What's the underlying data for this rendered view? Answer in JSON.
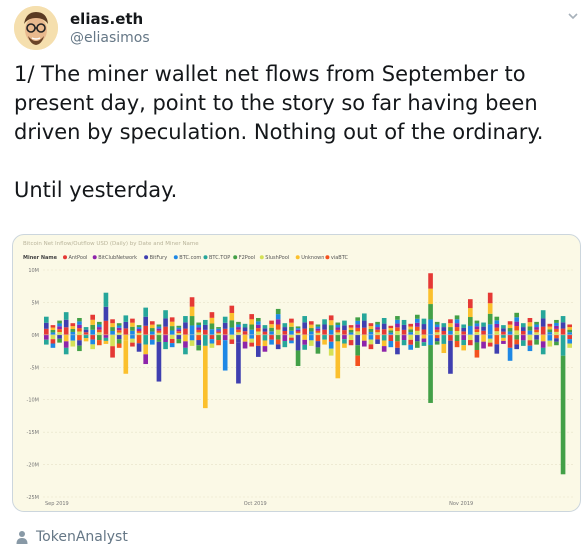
{
  "author": {
    "display_name": "elias.eth",
    "handle": "@eliasimos"
  },
  "tweet": {
    "text": "1/ The miner wallet net flows from September to present day, point to the story so far having been driven by speculation. Nothing out of the ordinary.\n\nUntil yesterday."
  },
  "chart_data": {
    "type": "bar",
    "stacked": true,
    "title": "Bitcoin Net Inflow/Outflow USD (Daily) by Date and Miner Name",
    "legend_title": "Miner Name",
    "legend_position": "top-left",
    "ylim": [
      -25,
      10
    ],
    "y_ticks": [
      "10M",
      "5M",
      "0M",
      "-5M",
      "-10M",
      "-15M",
      "-20M",
      "-25M"
    ],
    "y_tick_values": [
      10,
      5,
      0,
      -5,
      -10,
      -15,
      -20,
      -25
    ],
    "x_ticks": [
      "Sep 2019",
      "Oct 2019",
      "Nov 2019"
    ],
    "x_tick_positions": [
      0,
      30,
      61
    ],
    "grid": true,
    "colors": {
      "AntPool": "#e53935",
      "BitClubNetwork": "#8e24aa",
      "BitFury": "#3f3fb0",
      "BTC.com": "#1e88e5",
      "BTC.TOP": "#26a69a",
      "F2Pool": "#43a047",
      "SlushPool": "#d4e157",
      "Unknown": "#fbc02d",
      "viaBTC": "#f4511e"
    },
    "series_order": [
      "AntPool",
      "BitClubNetwork",
      "BitFury",
      "BTC.com",
      "BTC.TOP",
      "F2Pool",
      "SlushPool",
      "Unknown",
      "viaBTC"
    ],
    "day_totals_pos": [
      2.8,
      1.5,
      2.2,
      3.5,
      1.8,
      2.6,
      1.2,
      3.1,
      2.0,
      6.5,
      2.4,
      1.8,
      3.0,
      2.5,
      1.5,
      4.2,
      2.1,
      1.6,
      3.8,
      2.7,
      1.4,
      2.9,
      5.8,
      1.9,
      2.3,
      3.5,
      1.2,
      2.8,
      4.5,
      2.0,
      1.7,
      3.2,
      2.6,
      1.5,
      2.2,
      4.0,
      1.8,
      2.5,
      1.3,
      2.9,
      2.1,
      1.6,
      2.4,
      3.0,
      1.9,
      2.2,
      1.5,
      2.7,
      3.3,
      1.8,
      2.0,
      2.6,
      1.4,
      2.9,
      2.3,
      1.7,
      3.1,
      2.5,
      9.5,
      2.0,
      1.8,
      2.4,
      3.0,
      1.6,
      5.5,
      2.2,
      1.9,
      6.5,
      2.8,
      1.5,
      2.1,
      3.4,
      1.8,
      2.6,
      2.0,
      3.8,
      1.7,
      2.3,
      2.9,
      1.6
    ],
    "day_totals_neg": [
      -1.5,
      -2.0,
      -1.2,
      -3.0,
      -1.8,
      -2.5,
      -1.0,
      -2.2,
      -1.6,
      -1.4,
      -3.5,
      -2.0,
      -6.0,
      -1.8,
      -2.6,
      -4.5,
      -1.5,
      -7.2,
      -2.2,
      -1.9,
      -1.3,
      -3.0,
      -1.7,
      -2.4,
      -11.3,
      -2.0,
      -1.6,
      -5.5,
      -1.4,
      -7.5,
      -2.1,
      -1.8,
      -3.4,
      -2.6,
      -1.5,
      -2.2,
      -1.9,
      -1.3,
      -4.8,
      -2.3,
      -1.7,
      -2.9,
      -1.5,
      -3.2,
      -6.7,
      -2.0,
      -1.6,
      -4.8,
      -1.8,
      -2.2,
      -1.4,
      -2.6,
      -1.9,
      -3.0,
      -1.6,
      -2.3,
      -2.0,
      -1.7,
      -10.5,
      -1.5,
      -2.8,
      -6.0,
      -1.9,
      -2.4,
      -1.6,
      -3.5,
      -2.1,
      -1.8,
      -2.9,
      -1.4,
      -4.0,
      -2.2,
      -1.7,
      -2.5,
      -1.5,
      -3.0,
      -1.8,
      -1.6,
      -21.5,
      -2.0
    ]
  },
  "attribution": {
    "text": "TokenAnalyst"
  }
}
